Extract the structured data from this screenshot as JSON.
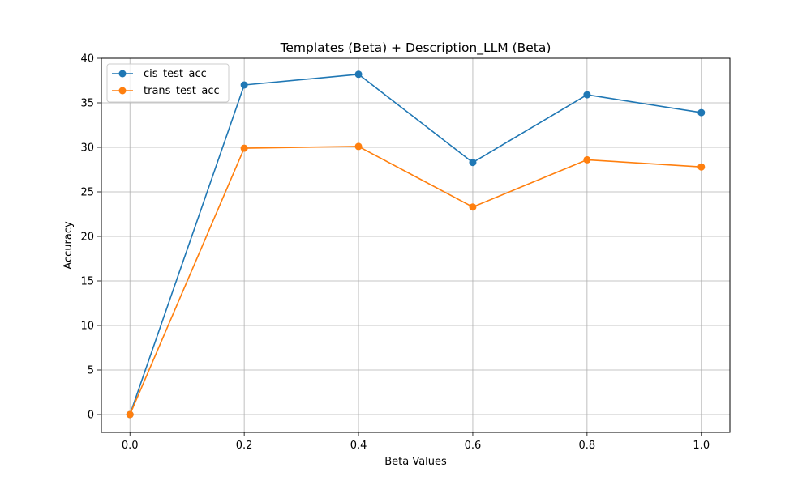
{
  "chart_data": {
    "type": "line",
    "title": "Templates (Beta) + Description_LLM (Beta)",
    "xlabel": "Beta Values",
    "ylabel": "Accuracy",
    "x": [
      0.0,
      0.2,
      0.4,
      0.6,
      0.8,
      1.0
    ],
    "xticks": [
      0.0,
      0.2,
      0.4,
      0.6,
      0.8,
      1.0
    ],
    "xtick_labels": [
      "0.0",
      "0.2",
      "0.4",
      "0.6",
      "0.8",
      "1.0"
    ],
    "yticks": [
      0,
      5,
      10,
      15,
      20,
      25,
      30,
      35,
      40
    ],
    "ytick_labels": [
      "0",
      "5",
      "10",
      "15",
      "20",
      "25",
      "30",
      "35",
      "40"
    ],
    "xlim": [
      -0.05,
      1.05
    ],
    "ylim": [
      -2,
      40
    ],
    "grid": true,
    "legend_position": "top-left",
    "series": [
      {
        "name": "cis_test_acc",
        "color": "#1f77b4",
        "values": [
          0.0,
          37.0,
          38.2,
          28.3,
          35.9,
          33.9
        ]
      },
      {
        "name": "trans_test_acc",
        "color": "#ff7f0e",
        "values": [
          0.0,
          29.9,
          30.1,
          23.3,
          28.6,
          27.8
        ]
      }
    ]
  }
}
